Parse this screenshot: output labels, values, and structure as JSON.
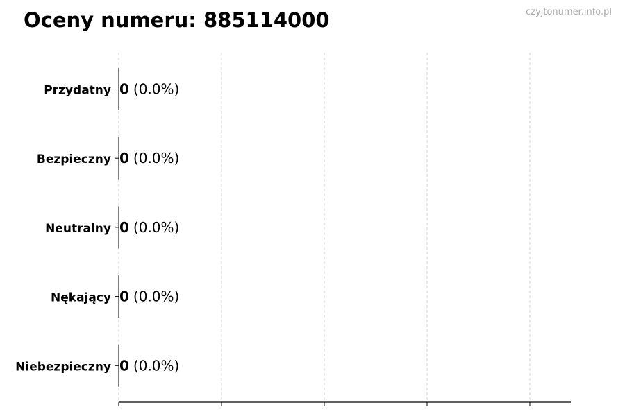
{
  "title": "Oceny numeru: 885114000",
  "watermark": "czyjtonumer.info.pl",
  "chart_data": {
    "type": "bar",
    "orientation": "horizontal",
    "categories": [
      "Przydatny",
      "Bezpieczny",
      "Neutralny",
      "Nękający",
      "Niebezpieczny"
    ],
    "values": [
      0,
      0,
      0,
      0,
      0
    ],
    "percent_labels": [
      "(0.0%)",
      "(0.0%)",
      "(0.0%)",
      "(0.0%)",
      "(0.0%)"
    ],
    "xlim": [
      0,
      4.4
    ],
    "x_gridlines": [
      0,
      1,
      2,
      3,
      4
    ],
    "grid": true,
    "grid_style": "dashed",
    "bar_edge_color": "#000000"
  }
}
